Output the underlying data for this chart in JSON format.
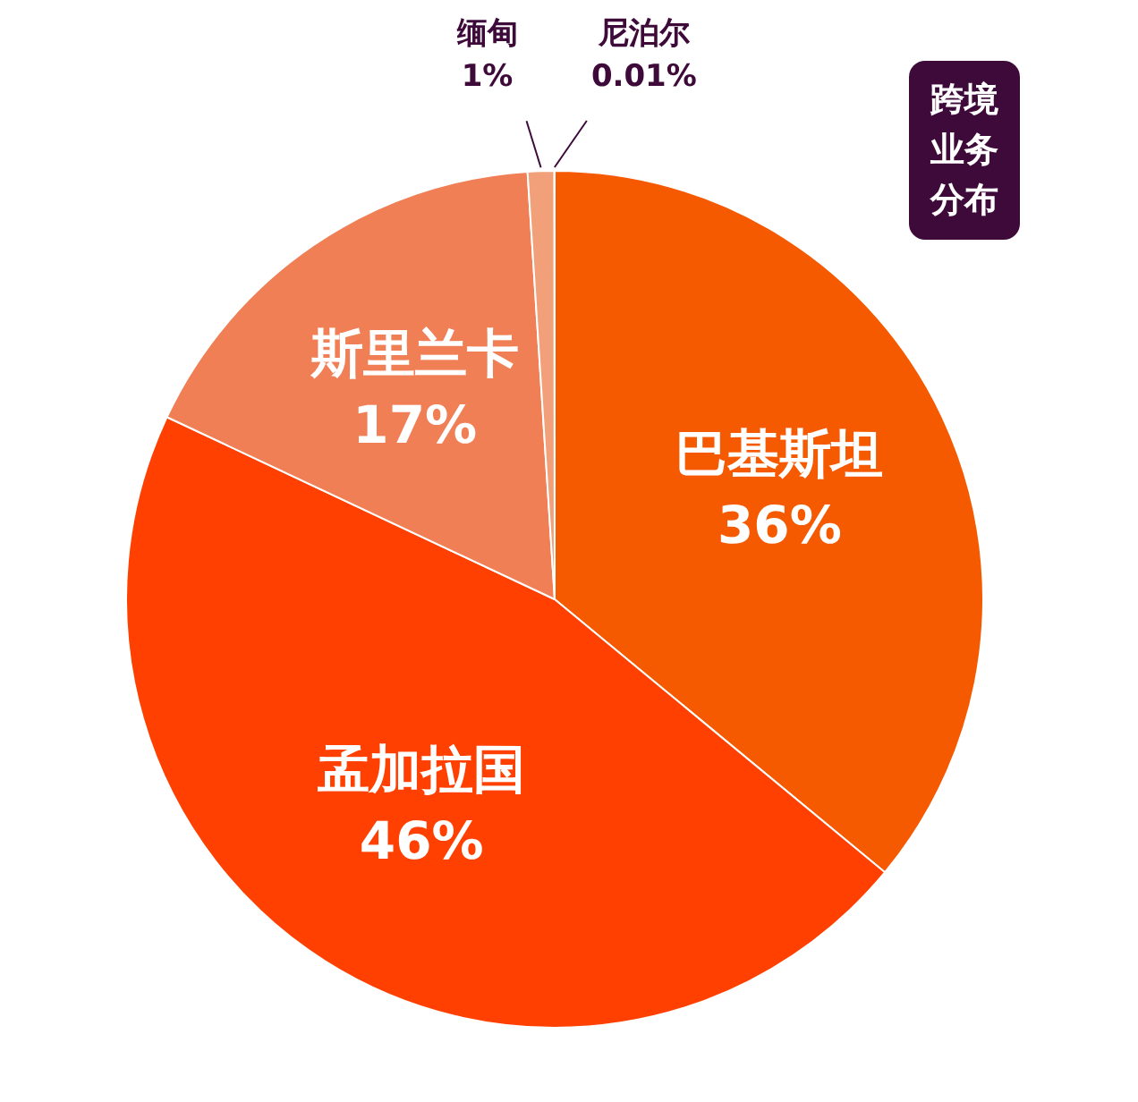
{
  "chart_data": {
    "type": "pie",
    "title": "跨境业务分布",
    "categories": [
      "巴基斯坦",
      "孟加拉国",
      "斯里兰卡",
      "缅甸",
      "尼泊尔"
    ],
    "values": [
      36,
      46,
      17,
      1,
      0.01
    ],
    "value_labels": [
      "36%",
      "46%",
      "17%",
      "1%",
      "0.01%"
    ],
    "colors": [
      "#f55a00",
      "#ff4000",
      "#f07f55",
      "#f2a07a",
      "#fbe6da"
    ],
    "legend": false
  }
}
